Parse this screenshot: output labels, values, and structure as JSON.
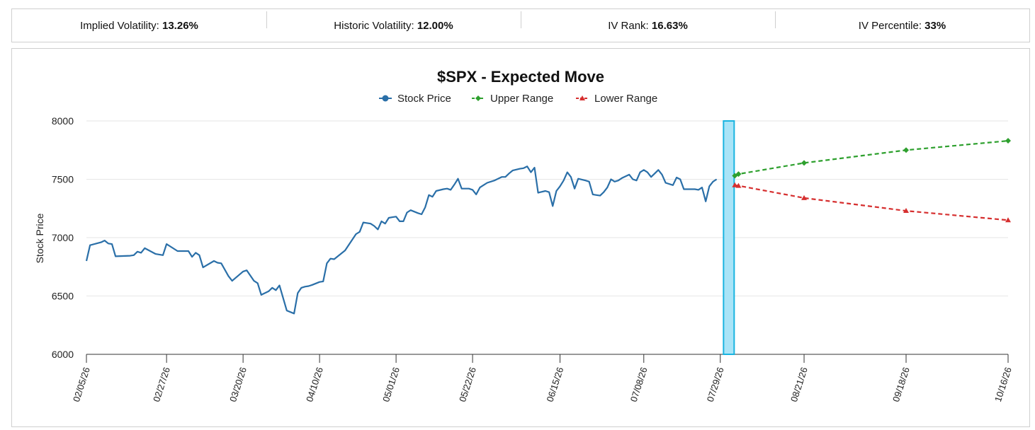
{
  "stats": [
    {
      "label": "Implied Volatility:",
      "value": "13.26%"
    },
    {
      "label": "Historic Volatility:",
      "value": "12.00%"
    },
    {
      "label": "IV Rank:",
      "value": "16.63%"
    },
    {
      "label": "IV Percentile:",
      "value": "33%"
    }
  ],
  "colors": {
    "stock": "#2a6fa8",
    "upper": "#2ea02e",
    "lower": "#d62f2f",
    "highlight_fill": "#a9e4f7",
    "highlight_stroke": "#1ab4e0"
  },
  "chart_data": {
    "type": "line",
    "title": "$SPX - Expected Move",
    "ylabel": "Stock Price",
    "xlabel": "",
    "ylim": [
      6000,
      8000
    ],
    "yticks": [
      6000,
      6500,
      7000,
      7500,
      8000
    ],
    "x_tick_labels": [
      "02/05/26",
      "02/27/26",
      "03/20/26",
      "04/10/26",
      "05/01/26",
      "05/22/26",
      "06/15/26",
      "07/08/26",
      "07/29/26",
      "08/21/26",
      "09/18/26",
      "10/16/26"
    ],
    "legend": [
      "Stock Price",
      "Upper Range",
      "Lower Range"
    ],
    "legend_position": "top-center",
    "highlight_date": "08/02/26",
    "series": [
      {
        "name": "Stock Price",
        "points": [
          [
            "02/05/26",
            6800
          ],
          [
            "02/06/26",
            6935
          ],
          [
            "02/09/26",
            6960
          ],
          [
            "02/10/26",
            6975
          ],
          [
            "02/11/26",
            6950
          ],
          [
            "02/12/26",
            6945
          ],
          [
            "02/13/26",
            6840
          ],
          [
            "02/17/26",
            6845
          ],
          [
            "02/18/26",
            6850
          ],
          [
            "02/19/26",
            6880
          ],
          [
            "02/20/26",
            6870
          ],
          [
            "02/21/26",
            6910
          ],
          [
            "02/24/26",
            6860
          ],
          [
            "02/26/26",
            6850
          ],
          [
            "02/27/26",
            6945
          ],
          [
            "03/02/26",
            6885
          ],
          [
            "03/05/26",
            6885
          ],
          [
            "03/06/26",
            6835
          ],
          [
            "03/07/26",
            6870
          ],
          [
            "03/08/26",
            6850
          ],
          [
            "03/09/26",
            6745
          ],
          [
            "03/12/26",
            6800
          ],
          [
            "03/13/26",
            6785
          ],
          [
            "03/14/26",
            6780
          ],
          [
            "03/16/26",
            6670
          ],
          [
            "03/17/26",
            6630
          ],
          [
            "03/20/26",
            6710
          ],
          [
            "03/21/26",
            6720
          ],
          [
            "03/23/26",
            6630
          ],
          [
            "03/24/26",
            6610
          ],
          [
            "03/25/26",
            6510
          ],
          [
            "03/27/26",
            6540
          ],
          [
            "03/28/26",
            6570
          ],
          [
            "03/29/26",
            6550
          ],
          [
            "03/30/26",
            6590
          ],
          [
            "04/01/26",
            6375
          ],
          [
            "04/03/26",
            6350
          ],
          [
            "04/04/26",
            6525
          ],
          [
            "04/05/26",
            6570
          ],
          [
            "04/06/26",
            6580
          ],
          [
            "04/07/26",
            6585
          ],
          [
            "04/08/26",
            6595
          ],
          [
            "04/10/26",
            6620
          ],
          [
            "04/11/26",
            6625
          ],
          [
            "04/12/26",
            6780
          ],
          [
            "04/13/26",
            6820
          ],
          [
            "04/14/26",
            6815
          ],
          [
            "04/17/26",
            6890
          ],
          [
            "04/20/26",
            7030
          ],
          [
            "04/21/26",
            7050
          ],
          [
            "04/22/26",
            7130
          ],
          [
            "04/24/26",
            7120
          ],
          [
            "04/25/26",
            7100
          ],
          [
            "04/26/26",
            7070
          ],
          [
            "04/27/26",
            7140
          ],
          [
            "04/28/26",
            7120
          ],
          [
            "04/29/26",
            7170
          ],
          [
            "04/30/26",
            7175
          ],
          [
            "05/01/26",
            7180
          ],
          [
            "05/02/26",
            7140
          ],
          [
            "05/03/26",
            7140
          ],
          [
            "05/04/26",
            7215
          ],
          [
            "05/05/26",
            7235
          ],
          [
            "05/07/26",
            7210
          ],
          [
            "05/08/26",
            7200
          ],
          [
            "05/09/26",
            7260
          ],
          [
            "05/10/26",
            7365
          ],
          [
            "05/11/26",
            7350
          ],
          [
            "05/12/26",
            7400
          ],
          [
            "05/14/26",
            7415
          ],
          [
            "05/15/26",
            7420
          ],
          [
            "05/16/26",
            7410
          ],
          [
            "05/17/26",
            7455
          ],
          [
            "05/18/26",
            7505
          ],
          [
            "05/19/26",
            7420
          ],
          [
            "05/21/26",
            7420
          ],
          [
            "05/22/26",
            7410
          ],
          [
            "05/23/26",
            7370
          ],
          [
            "05/24/26",
            7430
          ],
          [
            "05/25/26",
            7450
          ],
          [
            "05/26/26",
            7470
          ],
          [
            "05/28/26",
            7490
          ],
          [
            "05/30/26",
            7520
          ],
          [
            "05/31/26",
            7520
          ],
          [
            "06/01/26",
            7550
          ],
          [
            "06/02/26",
            7575
          ],
          [
            "06/04/26",
            7590
          ],
          [
            "06/05/26",
            7595
          ],
          [
            "06/06/26",
            7610
          ],
          [
            "06/07/26",
            7560
          ],
          [
            "06/08/26",
            7600
          ],
          [
            "06/09/26",
            7385
          ],
          [
            "06/11/26",
            7400
          ],
          [
            "06/12/26",
            7390
          ],
          [
            "06/13/26",
            7270
          ],
          [
            "06/14/26",
            7400
          ],
          [
            "06/15/26",
            7440
          ],
          [
            "06/16/26",
            7490
          ],
          [
            "06/17/26",
            7560
          ],
          [
            "06/18/26",
            7520
          ],
          [
            "06/19/26",
            7420
          ],
          [
            "06/20/26",
            7505
          ],
          [
            "06/22/26",
            7490
          ],
          [
            "06/23/26",
            7480
          ],
          [
            "06/24/26",
            7370
          ],
          [
            "06/25/26",
            7365
          ],
          [
            "06/26/26",
            7360
          ],
          [
            "06/27/26",
            7390
          ],
          [
            "06/28/26",
            7430
          ],
          [
            "06/29/26",
            7500
          ],
          [
            "06/30/26",
            7480
          ],
          [
            "07/01/26",
            7490
          ],
          [
            "07/02/26",
            7510
          ],
          [
            "07/04/26",
            7540
          ],
          [
            "07/05/26",
            7500
          ],
          [
            "07/06/26",
            7490
          ],
          [
            "07/07/26",
            7560
          ],
          [
            "07/08/26",
            7580
          ],
          [
            "07/09/26",
            7560
          ],
          [
            "07/10/26",
            7520
          ],
          [
            "07/11/26",
            7550
          ],
          [
            "07/12/26",
            7580
          ],
          [
            "07/13/26",
            7540
          ],
          [
            "07/14/26",
            7470
          ],
          [
            "07/16/26",
            7450
          ],
          [
            "07/17/26",
            7515
          ],
          [
            "07/18/26",
            7500
          ],
          [
            "07/19/26",
            7415
          ],
          [
            "07/22/26",
            7415
          ],
          [
            "07/23/26",
            7410
          ],
          [
            "07/24/26",
            7430
          ],
          [
            "07/25/26",
            7310
          ],
          [
            "07/26/26",
            7440
          ],
          [
            "07/27/26",
            7480
          ],
          [
            "07/28/26",
            7500
          ]
        ]
      },
      {
        "name": "Upper Range",
        "points": [
          [
            "08/02/26",
            7530
          ],
          [
            "08/03/26",
            7545
          ],
          [
            "08/21/26",
            7640
          ],
          [
            "09/18/26",
            7750
          ],
          [
            "10/16/26",
            7830
          ]
        ]
      },
      {
        "name": "Lower Range",
        "points": [
          [
            "08/02/26",
            7450
          ],
          [
            "08/03/26",
            7445
          ],
          [
            "08/21/26",
            7340
          ],
          [
            "09/18/26",
            7230
          ],
          [
            "10/16/26",
            7150
          ]
        ]
      }
    ]
  }
}
